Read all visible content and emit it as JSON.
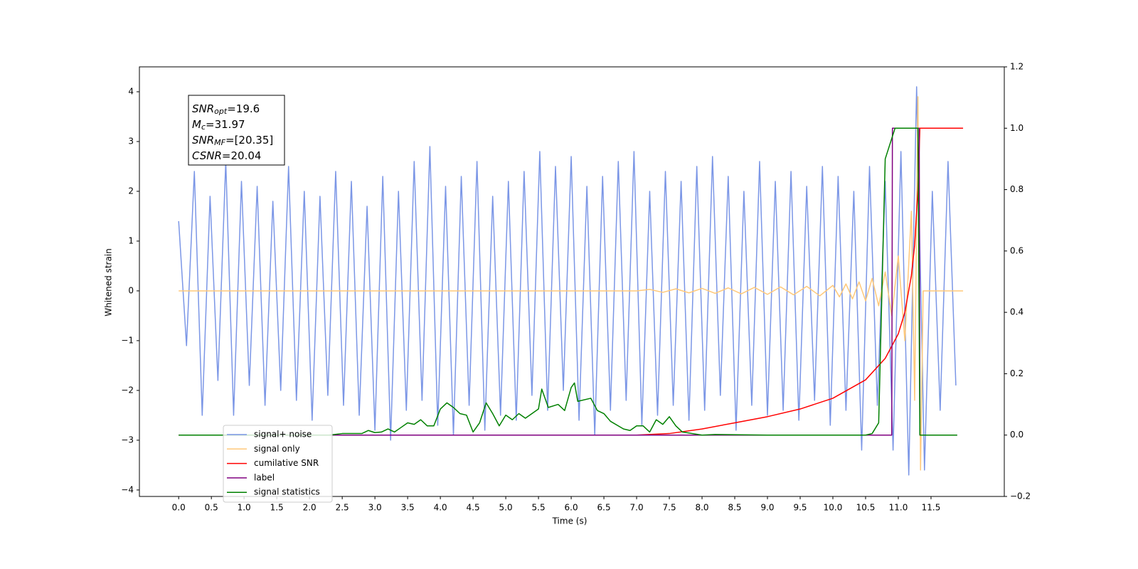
{
  "chart_data": {
    "type": "line",
    "xlabel": "Time (s)",
    "ylabel": "Whitened strain",
    "xlim": [
      -0.6,
      12.62
    ],
    "ylim": [
      -4.13,
      4.5
    ],
    "y2lim": [
      -0.2,
      1.2
    ],
    "xticks": [
      {
        "value": 0,
        "label": "0.0"
      },
      0.5,
      {
        "value": 1,
        "label": "1.0"
      },
      1.5,
      {
        "value": 2,
        "label": "2.0"
      },
      2.5,
      {
        "value": 3,
        "label": "3.0"
      },
      3.5,
      {
        "value": 4,
        "label": "4.0"
      },
      4.5,
      {
        "value": 5,
        "label": "5.0"
      },
      5.5,
      {
        "value": 6,
        "label": "6.0"
      },
      6.5,
      {
        "value": 7,
        "label": "7.0"
      },
      7.5,
      {
        "value": 8,
        "label": "8.0"
      },
      8.5,
      {
        "value": 9,
        "label": "9.0"
      },
      9.5,
      {
        "value": 10,
        "label": "10.0"
      },
      10.5,
      {
        "value": 11,
        "label": "11.0"
      },
      11.5
    ],
    "yticks": [
      {
        "value": -4,
        "label": "−4"
      },
      {
        "value": -3,
        "label": "−3"
      },
      {
        "value": -2,
        "label": "−2"
      },
      {
        "value": -1,
        "label": "−1"
      },
      0,
      1,
      2,
      3,
      4
    ],
    "y2ticks": [
      {
        "value": -0.2,
        "label": "−0.2"
      },
      {
        "value": 0,
        "label": "0.0"
      },
      0.2,
      0.4,
      0.6,
      0.8,
      {
        "value": 1,
        "label": "1.0"
      },
      1.2
    ],
    "annotation": [
      {
        "main": "SNR",
        "sub": "opt",
        "rest": "=19.6"
      },
      {
        "main": "M",
        "sub": "c",
        "rest": "=31.97"
      },
      {
        "main": "SNR",
        "sub": "MF",
        "rest": "=[20.35]"
      },
      {
        "main": "CSNR",
        "sub": null,
        "rest": "=20.04"
      }
    ],
    "legend": "lower left",
    "series": [
      {
        "name": "signal+ noise",
        "color": "#7b96e6",
        "x": [
          0,
          0.12,
          0.24,
          0.36,
          0.48,
          0.6,
          0.72,
          0.84,
          0.96,
          1.08,
          1.2,
          1.32,
          1.44,
          1.56,
          1.68,
          1.8,
          1.92,
          2.04,
          2.16,
          2.28,
          2.4,
          2.52,
          2.64,
          2.76,
          2.88,
          3,
          3.12,
          3.24,
          3.36,
          3.48,
          3.6,
          3.72,
          3.84,
          3.96,
          4.08,
          4.2,
          4.32,
          4.44,
          4.56,
          4.68,
          4.8,
          4.92,
          5.04,
          5.16,
          5.28,
          5.4,
          5.52,
          5.64,
          5.76,
          5.88,
          6,
          6.12,
          6.24,
          6.36,
          6.48,
          6.6,
          6.72,
          6.84,
          6.96,
          7.08,
          7.2,
          7.32,
          7.44,
          7.56,
          7.68,
          7.8,
          7.92,
          8.04,
          8.16,
          8.28,
          8.4,
          8.52,
          8.64,
          8.76,
          8.88,
          9,
          9.12,
          9.24,
          9.36,
          9.48,
          9.6,
          9.72,
          9.84,
          9.96,
          10.08,
          10.2,
          10.32,
          10.44,
          10.56,
          10.68,
          10.8,
          10.92,
          11.04,
          11.16,
          11.28,
          11.4,
          11.52,
          11.64,
          11.76,
          11.88
        ],
        "values": [
          1.4,
          -1.1,
          2.4,
          -2.5,
          1.9,
          -1.8,
          2.6,
          -2.5,
          2.2,
          -1.9,
          2.1,
          -2.3,
          1.8,
          -2.0,
          2.5,
          -2.2,
          2.0,
          -2.6,
          1.9,
          -2.1,
          2.4,
          -2.3,
          2.2,
          -2.5,
          1.7,
          -2.8,
          2.3,
          -3.0,
          2.0,
          -2.4,
          2.6,
          -2.2,
          2.9,
          -2.7,
          2.1,
          -2.9,
          2.3,
          -2.3,
          2.6,
          -2.8,
          1.9,
          -2.5,
          2.2,
          -2.6,
          2.4,
          -2.1,
          2.8,
          -2.4,
          2.5,
          -2.0,
          2.7,
          -2.6,
          2.1,
          -2.9,
          2.3,
          -2.4,
          2.6,
          -2.2,
          2.8,
          -2.7,
          2.0,
          -2.5,
          2.4,
          -2.3,
          2.2,
          -2.6,
          2.5,
          -2.4,
          2.7,
          -2.1,
          2.3,
          -2.8,
          2.0,
          -2.3,
          2.6,
          -2.5,
          2.2,
          -2.4,
          2.4,
          -2.6,
          2.1,
          -2.2,
          2.5,
          -2.7,
          2.3,
          -2.4,
          2.0,
          -3.2,
          2.5,
          -2.3,
          2.2,
          -3.2,
          2.8,
          -3.7,
          4.1,
          -3.6,
          2.0,
          -2.4,
          2.6,
          -1.9
        ]
      },
      {
        "name": "signal only",
        "color": "#ffc87a",
        "x": [
          0,
          7.0,
          7.2,
          7.4,
          7.6,
          7.8,
          8.0,
          8.2,
          8.4,
          8.6,
          8.8,
          9.0,
          9.2,
          9.4,
          9.6,
          9.8,
          10.0,
          10.1,
          10.2,
          10.3,
          10.4,
          10.5,
          10.6,
          10.7,
          10.8,
          10.9,
          11.0,
          11.1,
          11.2,
          11.25,
          11.3,
          11.34,
          11.38,
          11.99
        ],
        "values": [
          0,
          0,
          0.03,
          -0.03,
          0.04,
          -0.04,
          0.05,
          -0.05,
          0.06,
          -0.06,
          0.07,
          -0.07,
          0.08,
          -0.08,
          0.09,
          -0.1,
          0.11,
          -0.12,
          0.14,
          -0.16,
          0.18,
          -0.2,
          0.25,
          -0.3,
          0.38,
          -0.5,
          0.7,
          -1.0,
          1.6,
          -2.2,
          3.9,
          -3.6,
          0,
          0
        ]
      },
      {
        "name": "cumilative SNR",
        "color": "#ff0000",
        "axis": "y2",
        "x": [
          0,
          7.0,
          7.5,
          8.0,
          8.5,
          9.0,
          9.5,
          10.0,
          10.5,
          10.8,
          11.0,
          11.1,
          11.2,
          11.25,
          11.3,
          11.33,
          11.99
        ],
        "values": [
          0,
          0,
          0.005,
          0.02,
          0.04,
          0.06,
          0.085,
          0.12,
          0.18,
          0.25,
          0.33,
          0.4,
          0.52,
          0.62,
          0.8,
          1.0,
          1.0
        ]
      },
      {
        "name": "label",
        "color": "#800080",
        "axis": "y2",
        "x": [
          0,
          10.9,
          10.91,
          11.32,
          11.33,
          11.9
        ],
        "values": [
          0,
          0,
          1,
          1,
          0,
          0
        ]
      },
      {
        "name": "signal statistics",
        "color": "#008000",
        "axis": "y2",
        "x": [
          0,
          2.3,
          2.5,
          2.8,
          2.9,
          3.0,
          3.1,
          3.2,
          3.3,
          3.4,
          3.5,
          3.6,
          3.7,
          3.8,
          3.9,
          4.0,
          4.1,
          4.2,
          4.3,
          4.4,
          4.5,
          4.6,
          4.7,
          4.8,
          4.9,
          5.0,
          5.1,
          5.2,
          5.3,
          5.4,
          5.5,
          5.55,
          5.65,
          5.8,
          5.9,
          6.0,
          6.05,
          6.1,
          6.3,
          6.4,
          6.5,
          6.6,
          6.8,
          6.9,
          7.0,
          7.1,
          7.2,
          7.3,
          7.4,
          7.5,
          7.6,
          7.7,
          8.0,
          8.2,
          9.0,
          10.5,
          10.6,
          10.7,
          10.8,
          10.95,
          11.3,
          11.33,
          11.9
        ],
        "values": [
          0,
          0,
          0.005,
          0.005,
          0.015,
          0.008,
          0.01,
          0.02,
          0.01,
          0.025,
          0.04,
          0.035,
          0.05,
          0.03,
          0.03,
          0.085,
          0.105,
          0.09,
          0.07,
          0.065,
          0.01,
          0.04,
          0.105,
          0.07,
          0.03,
          0.065,
          0.05,
          0.07,
          0.055,
          0.07,
          0.085,
          0.15,
          0.09,
          0.1,
          0.08,
          0.155,
          0.17,
          0.11,
          0.12,
          0.08,
          0.07,
          0.045,
          0.02,
          0.015,
          0.03,
          0.03,
          0.01,
          0.05,
          0.035,
          0.06,
          0.03,
          0.01,
          0,
          0.002,
          0,
          0,
          0.005,
          0.04,
          0.9,
          1.0,
          1.0,
          0,
          0
        ]
      }
    ]
  }
}
